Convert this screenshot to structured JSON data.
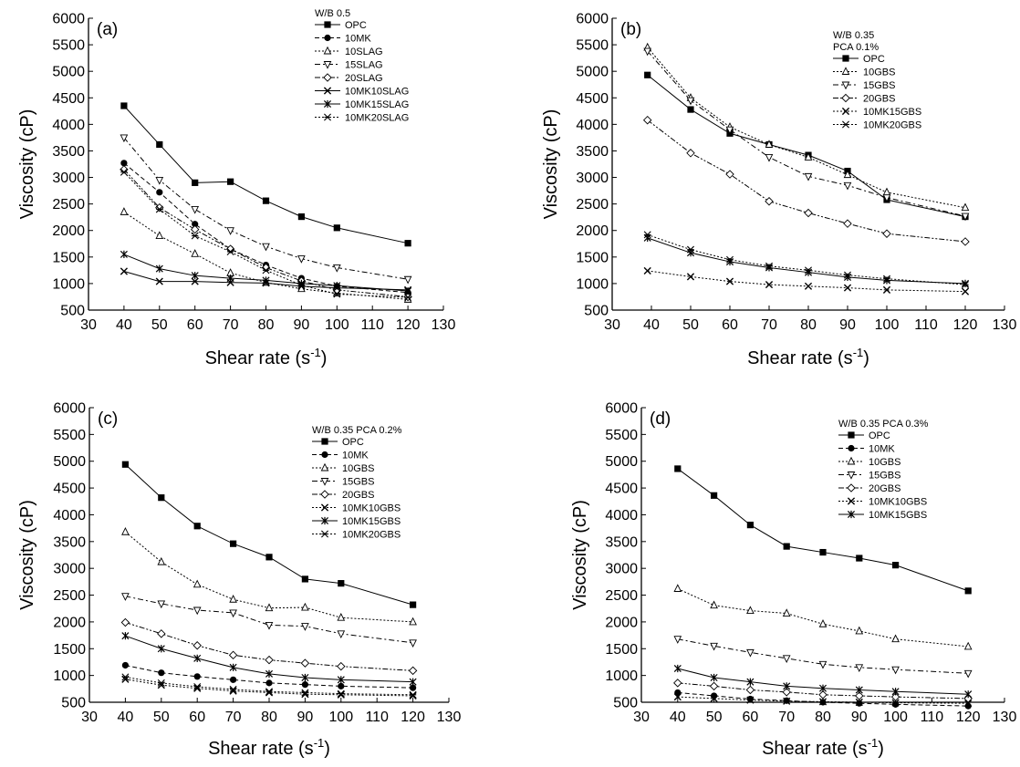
{
  "chart_data": [
    {
      "type": "line",
      "panel_label": "(a)",
      "xlabel": "Shear rate (s",
      "xlabel_sup": "-1",
      "xlabel_end": ")",
      "ylabel": "Viscosity (cP)",
      "xlim": [
        30,
        130
      ],
      "ylim": [
        500,
        6000
      ],
      "xticks": [
        30,
        40,
        50,
        60,
        70,
        80,
        90,
        100,
        110,
        120,
        130
      ],
      "yticks": [
        500,
        1000,
        1500,
        2000,
        2500,
        3000,
        3500,
        4000,
        4500,
        5000,
        5500,
        6000
      ],
      "legend_header": [
        "W/B 0.5"
      ],
      "legend_position": "top-right",
      "grid": false,
      "series": [
        {
          "name": "OPC",
          "marker": "square-filled",
          "dash": "solid",
          "x": [
            40,
            50,
            60,
            70,
            80,
            90,
            100,
            120
          ],
          "values": [
            4350,
            3620,
            2900,
            2920,
            2560,
            2260,
            2050,
            1760
          ]
        },
        {
          "name": "10MK",
          "marker": "circle-filled",
          "dash": "dash",
          "x": [
            40,
            50,
            60,
            70,
            80,
            90,
            100,
            120
          ],
          "values": [
            3270,
            2720,
            2120,
            1650,
            1350,
            1100,
            950,
            830
          ]
        },
        {
          "name": "10SLAG",
          "marker": "triangle-up",
          "dash": "dot",
          "x": [
            40,
            50,
            60,
            70,
            80,
            90,
            100,
            120
          ],
          "values": [
            2350,
            1900,
            1560,
            1200,
            1020,
            900,
            820,
            700
          ]
        },
        {
          "name": "15SLAG",
          "marker": "triangle-down",
          "dash": "dashdot",
          "x": [
            40,
            50,
            60,
            70,
            80,
            90,
            100,
            120
          ],
          "values": [
            3750,
            2950,
            2400,
            2000,
            1700,
            1470,
            1300,
            1080
          ]
        },
        {
          "name": "20SLAG",
          "marker": "diamond",
          "dash": "dashdotdot",
          "x": [
            40,
            50,
            60,
            70,
            80,
            90,
            100,
            120
          ],
          "values": [
            3150,
            2430,
            2020,
            1650,
            1300,
            1050,
            880,
            750
          ]
        },
        {
          "name": "10MK10SLAG",
          "marker": "x",
          "dash": "solid",
          "x": [
            40,
            50,
            60,
            70,
            80,
            90,
            100,
            120
          ],
          "values": [
            1230,
            1040,
            1040,
            1020,
            1010,
            950,
            920,
            880
          ]
        },
        {
          "name": "10MK15SLAG",
          "marker": "asterisk",
          "dash": "solid",
          "x": [
            40,
            50,
            60,
            70,
            80,
            90,
            100,
            120
          ],
          "values": [
            1550,
            1280,
            1150,
            1100,
            1060,
            1000,
            960,
            860
          ]
        },
        {
          "name": "10MK20SLAG",
          "marker": "x-box",
          "dash": "dot",
          "x": [
            40,
            50,
            60,
            70,
            80,
            90,
            100,
            120
          ],
          "values": [
            3100,
            2400,
            1900,
            1600,
            1250,
            970,
            800,
            740
          ]
        }
      ]
    },
    {
      "type": "line",
      "panel_label": "(b)",
      "xlabel": "Shear rate (s",
      "xlabel_sup": "-1",
      "xlabel_end": ")",
      "ylabel": "Viscosity (cP)",
      "xlim": [
        30,
        130
      ],
      "ylim": [
        500,
        6000
      ],
      "xticks": [
        30,
        40,
        50,
        60,
        70,
        80,
        90,
        100,
        110,
        120,
        130
      ],
      "yticks": [
        500,
        1000,
        1500,
        2000,
        2500,
        3000,
        3500,
        4000,
        4500,
        5000,
        5500,
        6000
      ],
      "legend_header": [
        "W/B 0.35",
        "PCA 0.1%"
      ],
      "legend_position": "top-right",
      "grid": false,
      "series": [
        {
          "name": "OPC",
          "marker": "square-filled",
          "dash": "solid",
          "x": [
            39,
            50,
            60,
            70,
            80,
            90,
            100,
            120
          ],
          "values": [
            4930,
            4280,
            3830,
            3620,
            3420,
            3120,
            2580,
            2260
          ]
        },
        {
          "name": "10GBS",
          "marker": "triangle-up",
          "dash": "dot",
          "x": [
            39,
            50,
            60,
            70,
            80,
            90,
            100,
            120
          ],
          "values": [
            5450,
            4500,
            3950,
            3620,
            3380,
            3050,
            2720,
            2430
          ]
        },
        {
          "name": "15GBS",
          "marker": "triangle-down",
          "dash": "dashdot",
          "x": [
            39,
            50,
            60,
            70,
            80,
            90,
            100,
            120
          ],
          "values": [
            5380,
            4450,
            3900,
            3380,
            3020,
            2850,
            2620,
            2270
          ]
        },
        {
          "name": "20GBS",
          "marker": "diamond",
          "dash": "dashdotdot",
          "x": [
            39,
            50,
            60,
            70,
            80,
            90,
            100,
            120
          ],
          "values": [
            4080,
            3460,
            3060,
            2550,
            2330,
            2130,
            1940,
            1790
          ]
        },
        {
          "name": "10MK15GBS",
          "marker": "x",
          "dash": "dot",
          "x": [
            39,
            50,
            60,
            70,
            80,
            90,
            100,
            120
          ],
          "values": [
            1240,
            1130,
            1040,
            980,
            950,
            920,
            880,
            850
          ]
        },
        {
          "name": "10MK20GBS",
          "marker": "x-box",
          "dash": "dot",
          "x": [
            39,
            50,
            60,
            70,
            80,
            90,
            100,
            120
          ],
          "values": [
            1920,
            1640,
            1450,
            1330,
            1250,
            1160,
            1090,
            980
          ]
        },
        {
          "name": "",
          "marker": "asterisk",
          "dash": "solid",
          "x": [
            39,
            50,
            60,
            70,
            80,
            90,
            100,
            120
          ],
          "values": [
            1860,
            1580,
            1410,
            1300,
            1210,
            1120,
            1060,
            1000
          ]
        }
      ]
    },
    {
      "type": "line",
      "panel_label": "(c)",
      "xlabel": "Shear rate (s",
      "xlabel_sup": "-1",
      "xlabel_end": ")",
      "ylabel": "Viscosity (cP)",
      "xlim": [
        30,
        130
      ],
      "ylim": [
        500,
        6000
      ],
      "xticks": [
        30,
        40,
        50,
        60,
        70,
        80,
        90,
        100,
        110,
        120,
        130
      ],
      "yticks": [
        500,
        1000,
        1500,
        2000,
        2500,
        3000,
        3500,
        4000,
        4500,
        5000,
        5500,
        6000
      ],
      "legend_header": [
        "W/B 0.35  PCA 0.2%"
      ],
      "legend_position": "top-right",
      "grid": false,
      "series": [
        {
          "name": "OPC",
          "marker": "square-filled",
          "dash": "solid",
          "x": [
            40,
            50,
            60,
            70,
            80,
            90,
            100,
            120
          ],
          "values": [
            4940,
            4320,
            3790,
            3460,
            3210,
            2800,
            2720,
            2320
          ]
        },
        {
          "name": "10MK",
          "marker": "circle-filled",
          "dash": "dash",
          "x": [
            40,
            50,
            60,
            70,
            80,
            90,
            100,
            120
          ],
          "values": [
            1190,
            1050,
            980,
            920,
            860,
            830,
            800,
            770
          ]
        },
        {
          "name": "10GBS",
          "marker": "triangle-up",
          "dash": "dot",
          "x": [
            40,
            50,
            60,
            70,
            80,
            90,
            100,
            120
          ],
          "values": [
            3680,
            3120,
            2700,
            2420,
            2260,
            2270,
            2080,
            2000
          ]
        },
        {
          "name": "15GBS",
          "marker": "triangle-down",
          "dash": "dashdot",
          "x": [
            40,
            50,
            60,
            70,
            80,
            90,
            100,
            120
          ],
          "values": [
            2480,
            2340,
            2220,
            2170,
            1940,
            1920,
            1780,
            1610
          ]
        },
        {
          "name": "20GBS",
          "marker": "diamond",
          "dash": "dashdotdot",
          "x": [
            40,
            50,
            60,
            70,
            80,
            90,
            100,
            120
          ],
          "values": [
            1990,
            1780,
            1560,
            1380,
            1290,
            1230,
            1170,
            1090
          ]
        },
        {
          "name": "10MK10GBS",
          "marker": "x",
          "dash": "dot",
          "x": [
            40,
            50,
            60,
            70,
            80,
            90,
            100,
            120
          ],
          "values": [
            930,
            820,
            760,
            710,
            680,
            650,
            640,
            620
          ]
        },
        {
          "name": "10MK15GBS",
          "marker": "asterisk",
          "dash": "solid",
          "x": [
            40,
            50,
            60,
            70,
            80,
            90,
            100,
            120
          ],
          "values": [
            1740,
            1500,
            1320,
            1150,
            1030,
            960,
            920,
            880
          ]
        },
        {
          "name": "10MK20GBS",
          "marker": "x-box",
          "dash": "dot",
          "x": [
            40,
            50,
            60,
            70,
            80,
            90,
            100,
            120
          ],
          "values": [
            970,
            860,
            790,
            740,
            700,
            680,
            660,
            640
          ]
        }
      ]
    },
    {
      "type": "line",
      "panel_label": "(d)",
      "xlabel": "Shear rate (s",
      "xlabel_sup": "-1",
      "xlabel_end": ")",
      "ylabel": "Viscosity (cP)",
      "xlim": [
        30,
        130
      ],
      "ylim": [
        500,
        6000
      ],
      "xticks": [
        30,
        40,
        50,
        60,
        70,
        80,
        90,
        100,
        110,
        120,
        130
      ],
      "yticks": [
        500,
        1000,
        1500,
        2000,
        2500,
        3000,
        3500,
        4000,
        4500,
        5000,
        5500,
        6000
      ],
      "legend_header": [
        "W/B 0.35  PCA 0.3%"
      ],
      "legend_position": "top-right",
      "grid": false,
      "series": [
        {
          "name": "OPC",
          "marker": "square-filled",
          "dash": "solid",
          "x": [
            40,
            50,
            60,
            70,
            80,
            90,
            100,
            120
          ],
          "values": [
            4860,
            4360,
            3810,
            3410,
            3300,
            3190,
            3060,
            2580
          ]
        },
        {
          "name": "10MK",
          "marker": "circle-filled",
          "dash": "dash",
          "x": [
            40,
            50,
            60,
            70,
            80,
            90,
            100,
            120
          ],
          "values": [
            680,
            620,
            560,
            530,
            500,
            480,
            460,
            430
          ]
        },
        {
          "name": "10GBS",
          "marker": "triangle-up",
          "dash": "dot",
          "x": [
            40,
            50,
            60,
            70,
            80,
            90,
            100,
            120
          ],
          "values": [
            2620,
            2310,
            2210,
            2160,
            1960,
            1830,
            1680,
            1540
          ]
        },
        {
          "name": "15GBS",
          "marker": "triangle-down",
          "dash": "dashdot",
          "x": [
            40,
            50,
            60,
            70,
            80,
            90,
            100,
            120
          ],
          "values": [
            1680,
            1550,
            1430,
            1320,
            1210,
            1150,
            1110,
            1040
          ]
        },
        {
          "name": "20GBS",
          "marker": "diamond",
          "dash": "dashdotdot",
          "x": [
            40,
            50,
            60,
            70,
            80,
            90,
            100,
            120
          ],
          "values": [
            860,
            800,
            730,
            690,
            640,
            620,
            600,
            570
          ]
        },
        {
          "name": "10MK10GBS",
          "marker": "x",
          "dash": "dot",
          "x": [
            40,
            50,
            60,
            70,
            80,
            90,
            100,
            120
          ],
          "values": [
            600,
            570,
            540,
            520,
            510,
            500,
            490,
            480
          ]
        },
        {
          "name": "10MK15GBS",
          "marker": "asterisk",
          "dash": "solid",
          "x": [
            40,
            50,
            60,
            70,
            80,
            90,
            100,
            120
          ],
          "values": [
            1130,
            960,
            880,
            800,
            760,
            730,
            700,
            650
          ]
        }
      ]
    }
  ]
}
